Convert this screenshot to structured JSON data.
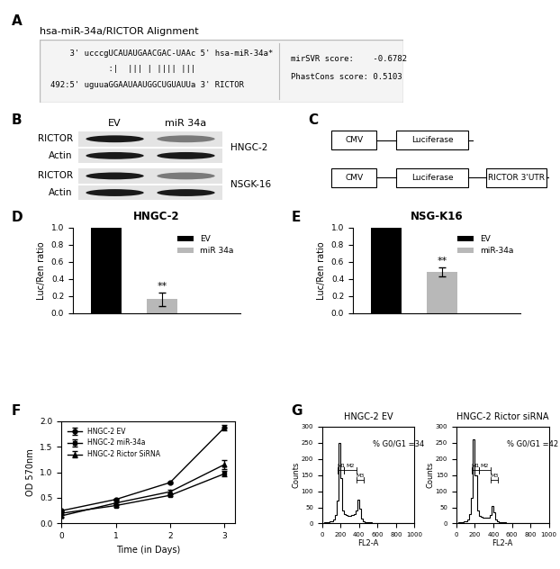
{
  "panel_labels": [
    "A",
    "B",
    "C",
    "D",
    "E",
    "F",
    "G"
  ],
  "alignment": {
    "title": "hsa-miR-34a/RICTOR Alignment",
    "lines": [
      "    3' ucccgUCAUAUGAACGAC-UAAc 5' hsa-miR-34a*",
      "            :|  ||| | |||| |||",
      "492:5' uguuaGGAAUAAUGGCUGUAUUa 3' RICTOR"
    ],
    "scores": [
      "mirSVR score:    -0.6782",
      "PhastCons score: 0.5103"
    ]
  },
  "blot": {
    "lanes": [
      "EV",
      "miR 34a"
    ],
    "groups": [
      {
        "cell_line": "HNGC-2",
        "rows": [
          "RICTOR",
          "Actin"
        ]
      },
      {
        "cell_line": "NSGK-16",
        "rows": [
          "RICTOR",
          "Actin"
        ]
      }
    ]
  },
  "constructs": [
    [
      "CMV",
      "Luciferase"
    ],
    [
      "CMV",
      "Luciferase",
      "RICTOR 3'UTR"
    ]
  ],
  "chart_data": [
    {
      "type": "bar",
      "title": "HNGC-2",
      "y_label": "Luc/Ren ratio",
      "categories": [
        "EV",
        "miR 34a"
      ],
      "values": [
        1.0,
        0.16
      ],
      "errors": [
        0,
        0.08
      ],
      "colors": [
        "#000000",
        "#b8b8b8"
      ],
      "legend": "upper right",
      "tick_labels": "y",
      "annotations": [
        {
          "text": "**",
          "category": "miR 34a"
        }
      ],
      "ylim": [
        0,
        1.0
      ],
      "yticks": [
        {
          "value": 0,
          "label": "0.0"
        },
        {
          "value": 0.2,
          "label": "0.2"
        },
        {
          "value": 0.4,
          "label": "0.4"
        },
        {
          "value": 0.6,
          "label": "0.6"
        },
        {
          "value": 0.8,
          "label": "0.8"
        },
        {
          "value": 1.0,
          "label": "1.0"
        }
      ]
    },
    {
      "type": "bar",
      "title": "NSG-K16",
      "y_label": "Luc/Ren ratio",
      "categories": [
        "EV",
        "miR-34a"
      ],
      "values": [
        1.0,
        0.48
      ],
      "errors": [
        0,
        0.05
      ],
      "colors": [
        "#000000",
        "#b8b8b8"
      ],
      "legend": "upper right",
      "tick_labels": "y",
      "annotations": [
        {
          "text": "**",
          "category": "miR-34a"
        }
      ],
      "ylim": [
        0,
        1.0
      ],
      "yticks": [
        {
          "value": 0,
          "label": "0.0"
        },
        {
          "value": 0.2,
          "label": "0.2"
        },
        {
          "value": 0.4,
          "label": "0.4"
        },
        {
          "value": 0.6,
          "label": "0.6"
        },
        {
          "value": 0.8,
          "label": "0.8"
        },
        {
          "value": 1.0,
          "label": "1.0"
        }
      ]
    },
    {
      "type": "line",
      "x_label": "Time (in Days)",
      "y_label": "OD 570nm",
      "x": [
        0,
        1,
        2,
        3
      ],
      "series": [
        {
          "name": "HNGC-2 EV",
          "color": "#000000",
          "marker": "circle",
          "values": [
            0.25,
            0.47,
            0.8,
            1.87
          ],
          "errors": [
            0.02,
            0.02,
            0.02,
            0.05
          ]
        },
        {
          "name": "HNGC-2 miR-34a",
          "color": "#000000",
          "marker": "square",
          "values": [
            0.2,
            0.35,
            0.55,
            0.97
          ],
          "errors": [
            0.02,
            0.02,
            0.02,
            0.05
          ]
        },
        {
          "name": "HNGC-2 Rictor SiRNA",
          "color": "#000000",
          "marker": "triangle",
          "values": [
            0.15,
            0.4,
            0.62,
            1.15
          ],
          "errors": [
            0.02,
            0.02,
            0.03,
            0.08
          ]
        }
      ],
      "legend": "upper left",
      "xlim": [
        0,
        3.2
      ],
      "xticks": [
        0,
        1,
        2,
        3
      ],
      "ylim": [
        0,
        2.0
      ],
      "yticks": [
        {
          "value": 0,
          "label": "0.0"
        },
        {
          "value": 0.5,
          "label": "0.5"
        },
        {
          "value": 1.0,
          "label": "1.0"
        },
        {
          "value": 1.5,
          "label": "1.5"
        },
        {
          "value": 2.0,
          "label": "2.0"
        }
      ]
    },
    {
      "type": "histogram",
      "title": "HNGC-2 EV",
      "x_label": "FL2-A",
      "y_label": "Counts",
      "annotation": "% G0/G1 =34",
      "bins": [
        0,
        20,
        40,
        60,
        80,
        100,
        120,
        140,
        160,
        180,
        200,
        220,
        240,
        260,
        280,
        300,
        320,
        340,
        360,
        380,
        400,
        420,
        440,
        460,
        480,
        500,
        520,
        540,
        560,
        580,
        600,
        620,
        640,
        660,
        680,
        700,
        720,
        740,
        760,
        780,
        800,
        820,
        840,
        860,
        880,
        900,
        920,
        940,
        960,
        980,
        1000
      ],
      "counts": [
        2,
        3,
        4,
        5,
        6,
        8,
        12,
        25,
        70,
        250,
        140,
        40,
        28,
        25,
        24,
        24,
        25,
        28,
        40,
        75,
        45,
        15,
        8,
        5,
        4,
        3,
        3,
        2,
        2,
        2,
        2,
        1,
        1,
        1,
        1,
        1,
        1,
        1,
        0,
        0,
        0,
        0,
        0,
        0,
        0,
        0,
        0,
        0,
        0,
        0
      ],
      "gates": [
        {
          "label": "M1",
          "range": [
            170,
            240
          ]
        },
        {
          "label": "M2",
          "range": [
            240,
            370
          ]
        },
        {
          "label": "M3",
          "range": [
            370,
            450
          ]
        }
      ],
      "color": "#000000",
      "xlim": [
        0,
        1000
      ],
      "xticks": [
        0,
        200,
        400,
        600,
        800,
        1000
      ],
      "ylim": [
        0,
        300
      ],
      "yticks": [
        0,
        50,
        100,
        150,
        200,
        250,
        300
      ]
    },
    {
      "type": "histogram",
      "title": "HNGC-2 Rictor siRNA",
      "x_label": "FL2-A",
      "y_label": "Counts",
      "annotation": "% G0/G1 =42",
      "bins": [
        0,
        20,
        40,
        60,
        80,
        100,
        120,
        140,
        160,
        180,
        200,
        220,
        240,
        260,
        280,
        300,
        320,
        340,
        360,
        380,
        400,
        420,
        440,
        460,
        480,
        500,
        520,
        540,
        560,
        580,
        600,
        620,
        640,
        660,
        680,
        700,
        720,
        740,
        760,
        780,
        800,
        820,
        840,
        860,
        880,
        900,
        920,
        940,
        960,
        980,
        1000
      ],
      "counts": [
        2,
        3,
        4,
        5,
        6,
        8,
        12,
        28,
        80,
        260,
        150,
        40,
        24,
        20,
        18,
        17,
        17,
        18,
        25,
        55,
        35,
        12,
        7,
        5,
        4,
        3,
        3,
        2,
        2,
        2,
        2,
        1,
        1,
        1,
        1,
        1,
        1,
        1,
        0,
        0,
        0,
        0,
        0,
        0,
        0,
        0,
        0,
        0,
        0,
        0
      ],
      "gates": [
        {
          "label": "M1",
          "range": [
            170,
            240
          ]
        },
        {
          "label": "M2",
          "range": [
            240,
            370
          ]
        },
        {
          "label": "M3",
          "range": [
            370,
            450
          ]
        }
      ],
      "color": "#000000",
      "xlim": [
        0,
        1000
      ],
      "xticks": [
        0,
        200,
        400,
        600,
        800,
        1000
      ],
      "ylim": [
        0,
        300
      ],
      "yticks": [
        0,
        50,
        100,
        150,
        200,
        250,
        300
      ]
    }
  ]
}
